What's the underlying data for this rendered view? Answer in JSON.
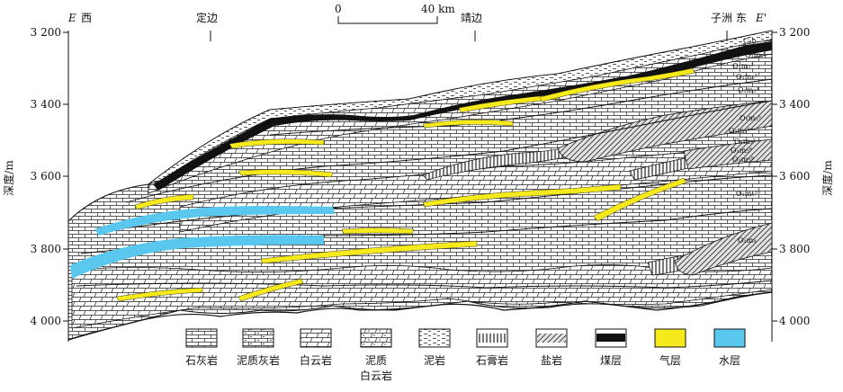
{
  "header": {
    "west_letter": "E",
    "west_label": "西",
    "east_label": "子洲  东",
    "east_letter": "E'",
    "towns": [
      "定边",
      "靖边"
    ]
  },
  "scale_bar": {
    "start": "0",
    "end": "40 km"
  },
  "depth_axis": {
    "label": "深度/m",
    "ticks": [
      "3 200",
      "3 400",
      "3 600",
      "3 800",
      "4 000"
    ]
  },
  "strata_labels": [
    "C₂b",
    "O₁m₅¹",
    "O₁m₅²",
    "O₁m₅³",
    "O₁m₅⁴",
    "O₁m₅⁵",
    "O₁m₅⁶",
    "O₁m₅⁷",
    "O₁m₅⁸",
    "O₁m₅⁹",
    "O₁m₅¹⁰",
    "O₁m₄"
  ],
  "legend": [
    {
      "label": "石灰岩",
      "pattern": "limestone"
    },
    {
      "label": "泥质灰岩",
      "pattern": "argillaceous-limestone"
    },
    {
      "label": "白云岩",
      "pattern": "dolomite"
    },
    {
      "label": "泥质\n白云岩",
      "line1": "泥质",
      "line2": "白云岩",
      "pattern": "argillaceous-dolomite"
    },
    {
      "label": "泥岩",
      "pattern": "mudstone"
    },
    {
      "label": "石膏岩",
      "pattern": "gypsum"
    },
    {
      "label": "盐岩",
      "pattern": "salt"
    },
    {
      "label": "煤层",
      "pattern": "coal"
    },
    {
      "label": "气层",
      "pattern": "gas"
    },
    {
      "label": "水层",
      "pattern": "water"
    }
  ],
  "colors": {
    "gas": "#f7ea1c",
    "water": "#5ac8ee",
    "coal": "#111111",
    "salt_bg": "#dddddd"
  }
}
